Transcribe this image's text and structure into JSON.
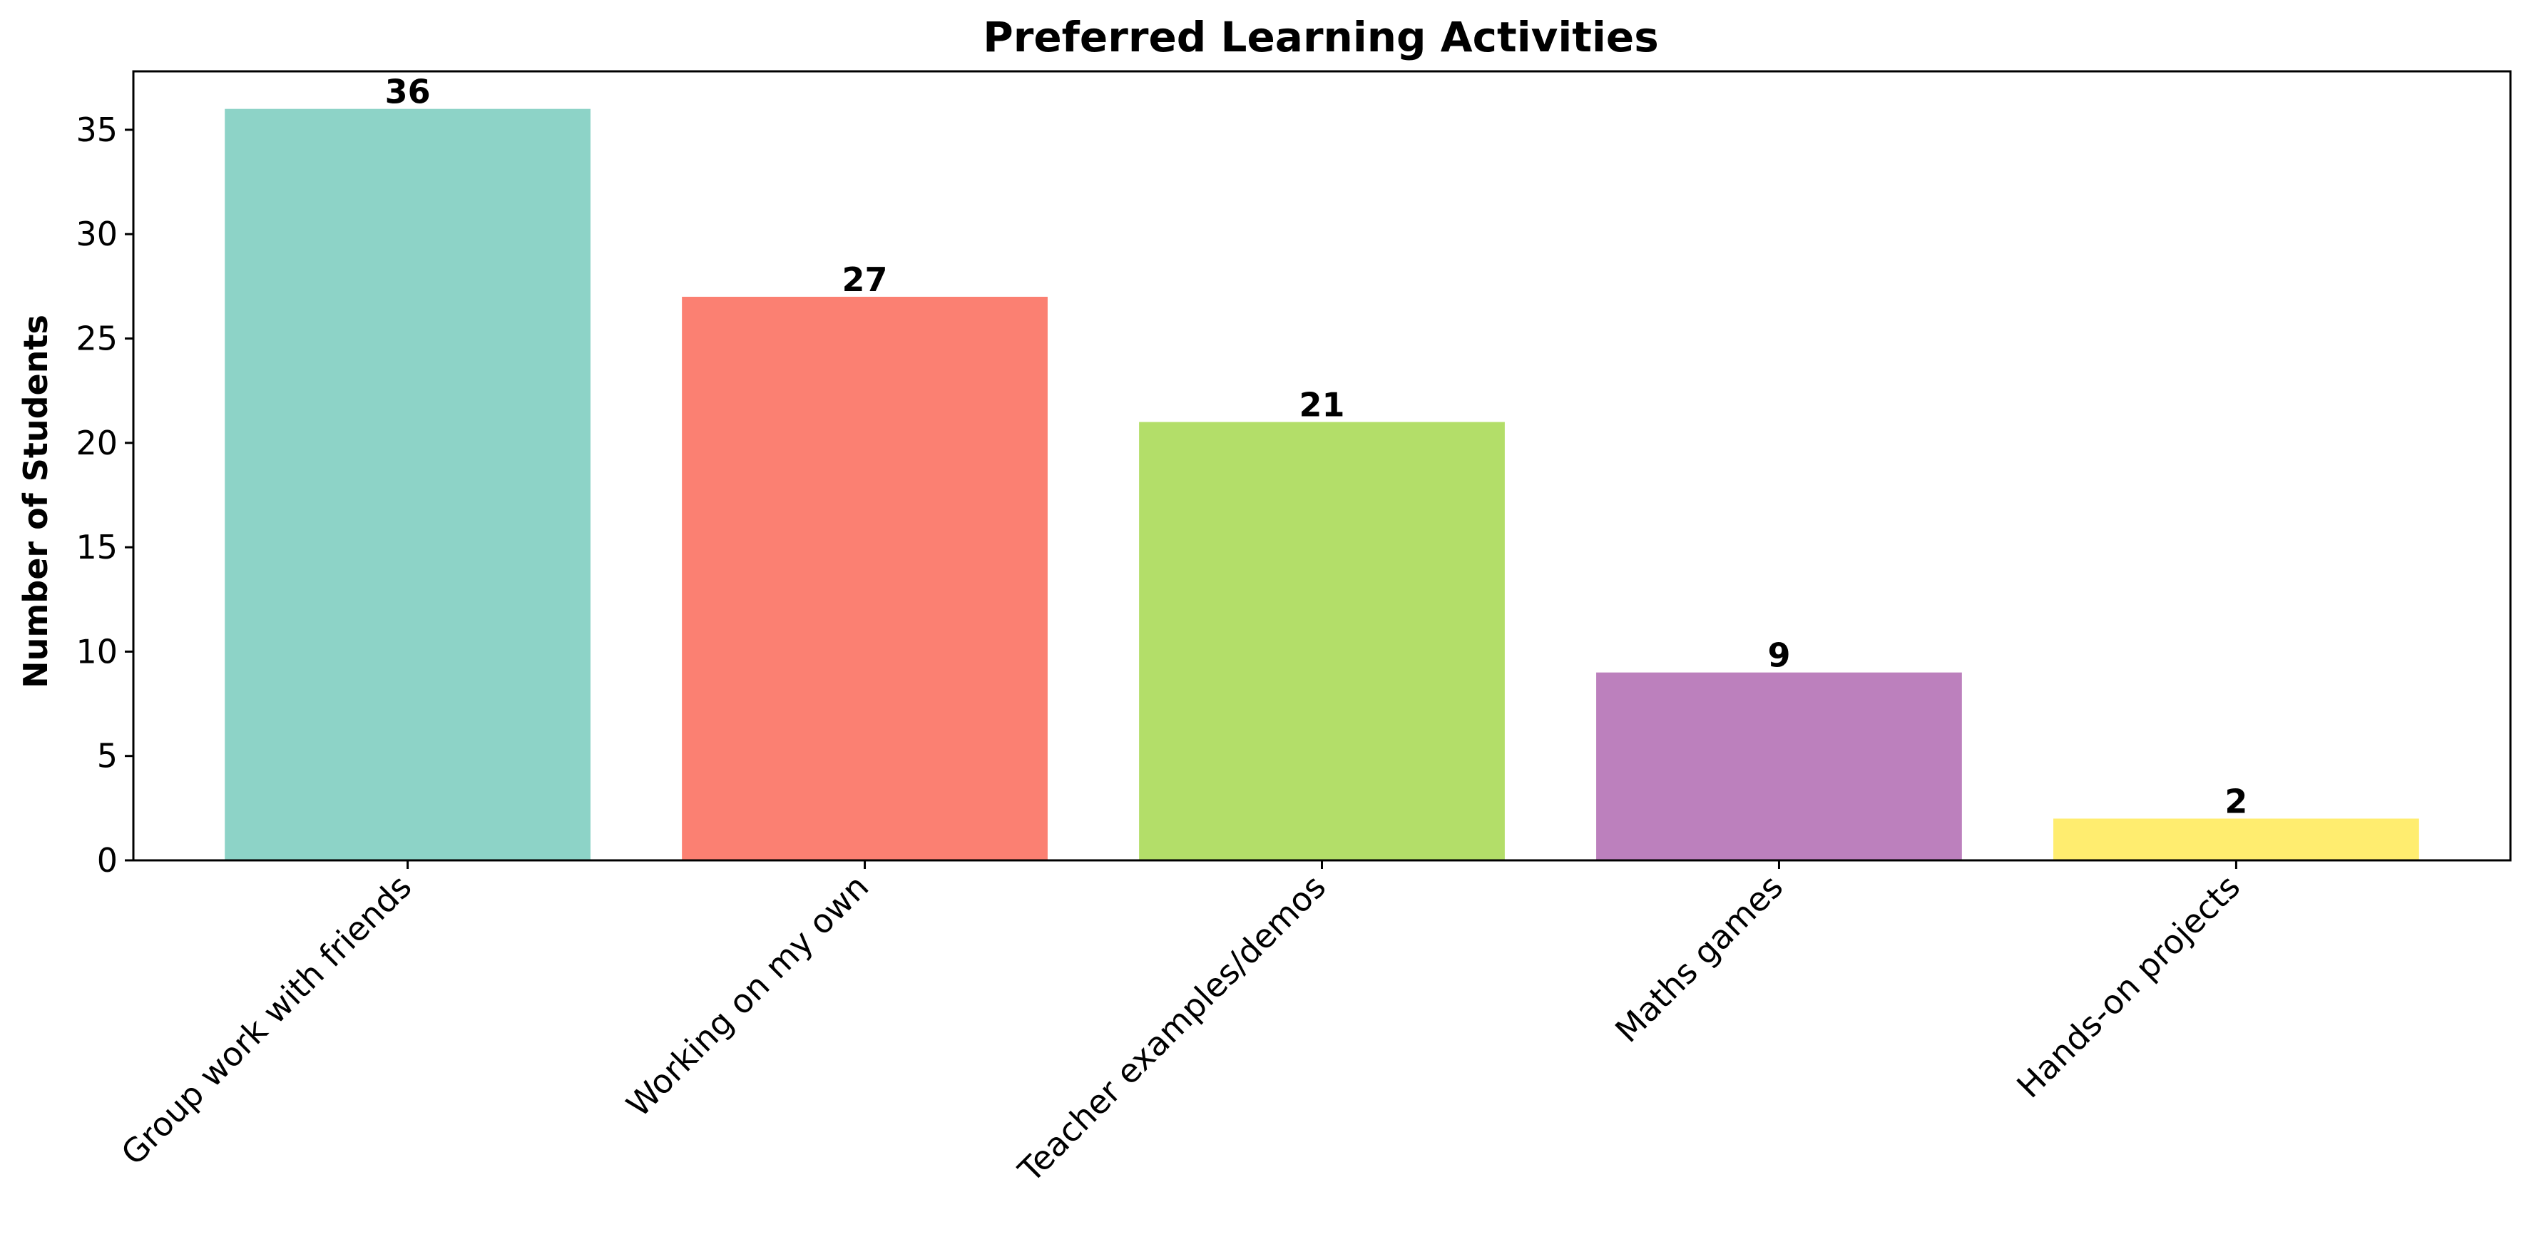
{
  "chart_data": {
    "type": "bar",
    "title": "Preferred Learning Activities",
    "xlabel": "",
    "ylabel": "Number of Students",
    "categories": [
      "Group work with friends",
      "Working on my own",
      "Teacher examples/demos",
      "Maths games",
      "Hands-on projects"
    ],
    "values": [
      36,
      27,
      21,
      9,
      2
    ],
    "data_labels": [
      "36",
      "27",
      "21",
      "9",
      "2"
    ],
    "colors": [
      "#8dd3c7",
      "#fb8072",
      "#b3de69",
      "#bc80bd",
      "#ffed6f"
    ],
    "ylim": [
      0,
      37.8
    ],
    "yticks": [
      0,
      5,
      10,
      15,
      20,
      25,
      30,
      35
    ],
    "ytick_labels": [
      "0",
      "5",
      "10",
      "15",
      "20",
      "25",
      "30",
      "35"
    ],
    "grid": false,
    "legend": "none"
  }
}
